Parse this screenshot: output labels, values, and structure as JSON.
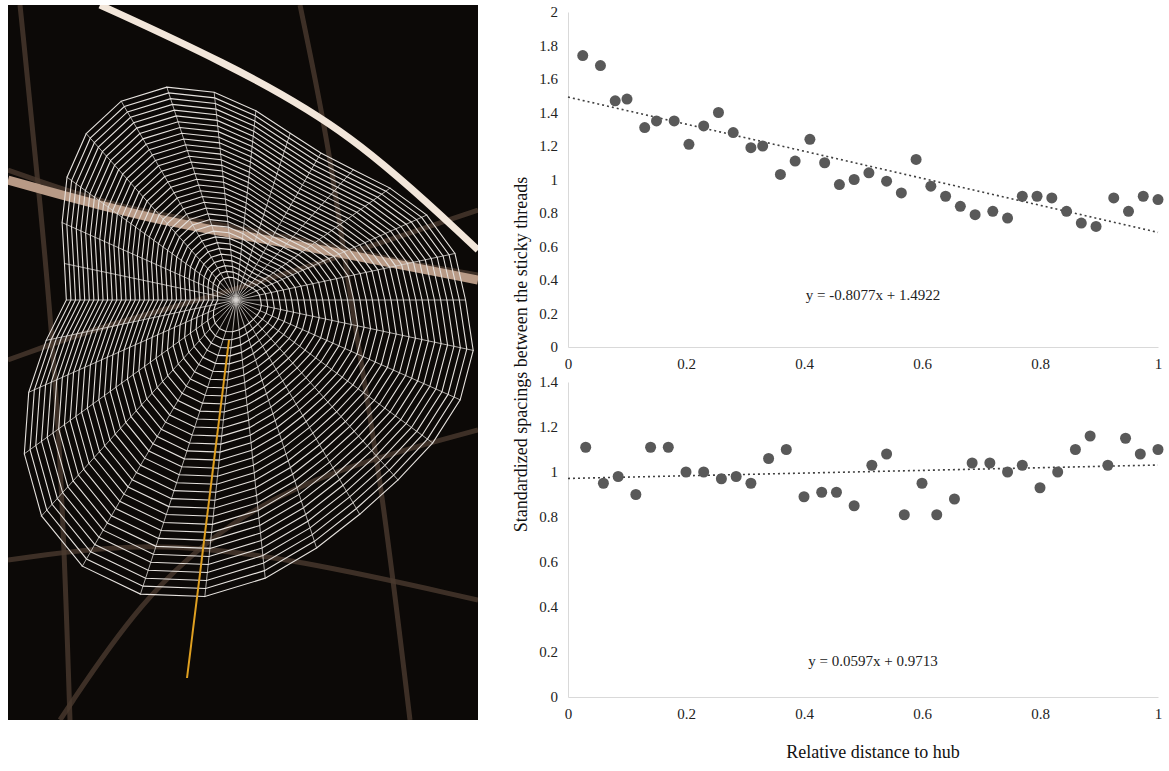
{
  "chart_data": [
    {
      "type": "scatter",
      "color": "#595959",
      "marker": "circle",
      "ylabel": "Standardized spacings between the sticky threads",
      "x": [
        0.025,
        0.055,
        0.08,
        0.1,
        0.13,
        0.15,
        0.18,
        0.205,
        0.23,
        0.255,
        0.28,
        0.31,
        0.33,
        0.36,
        0.385,
        0.41,
        0.435,
        0.46,
        0.485,
        0.51,
        0.54,
        0.565,
        0.59,
        0.615,
        0.64,
        0.665,
        0.69,
        0.72,
        0.745,
        0.77,
        0.795,
        0.82,
        0.845,
        0.87,
        0.895,
        0.925,
        0.95,
        0.975,
        1.0
      ],
      "values": [
        1.74,
        1.68,
        1.47,
        1.48,
        1.31,
        1.35,
        1.35,
        1.21,
        1.32,
        1.4,
        1.28,
        1.19,
        1.2,
        1.03,
        1.11,
        1.24,
        1.1,
        0.97,
        1.0,
        1.04,
        0.99,
        0.92,
        1.12,
        0.96,
        0.9,
        0.84,
        0.79,
        0.81,
        0.77,
        0.9,
        0.9,
        0.89,
        0.81,
        0.74,
        0.72,
        0.89,
        0.81,
        0.9,
        0.88
      ],
      "trend": {
        "slope": -0.8077,
        "intercept": 1.4922
      },
      "annotation": "y = -0.8077x + 1.4922",
      "xlim": [
        0,
        1
      ],
      "xticks": [
        0,
        0.2,
        0.4,
        0.6,
        0.8,
        1
      ],
      "ylim": [
        0,
        2
      ],
      "yticks": [
        0,
        0.2,
        0.4,
        0.6,
        0.8,
        1,
        1.2,
        1.4,
        1.6,
        1.8,
        2
      ]
    },
    {
      "type": "scatter",
      "color": "#595959",
      "marker": "circle",
      "xlabel": "Relative distance to hub",
      "x": [
        0.03,
        0.06,
        0.085,
        0.115,
        0.14,
        0.17,
        0.2,
        0.23,
        0.26,
        0.285,
        0.31,
        0.34,
        0.37,
        0.4,
        0.43,
        0.455,
        0.485,
        0.515,
        0.54,
        0.57,
        0.6,
        0.625,
        0.655,
        0.685,
        0.715,
        0.745,
        0.77,
        0.8,
        0.83,
        0.86,
        0.885,
        0.915,
        0.945,
        0.97,
        1.0
      ],
      "values": [
        1.11,
        0.95,
        0.98,
        0.9,
        1.11,
        1.11,
        1.0,
        1.0,
        0.97,
        0.98,
        0.95,
        1.06,
        1.1,
        0.89,
        0.91,
        0.91,
        0.85,
        1.03,
        1.08,
        0.81,
        0.95,
        0.81,
        0.88,
        1.04,
        1.04,
        1.0,
        1.03,
        0.93,
        1.0,
        1.1,
        1.16,
        1.03,
        1.15,
        1.08,
        1.1
      ],
      "trend": {
        "slope": 0.0597,
        "intercept": 0.9713
      },
      "annotation": "y = 0.0597x + 0.9713",
      "xlim": [
        0,
        1
      ],
      "xticks": [
        0,
        0.2,
        0.4,
        0.6,
        0.8,
        1
      ],
      "ylim": [
        0,
        1.4
      ],
      "yticks": [
        0,
        0.2,
        0.4,
        0.6,
        0.8,
        1,
        1.2,
        1.4
      ]
    }
  ]
}
